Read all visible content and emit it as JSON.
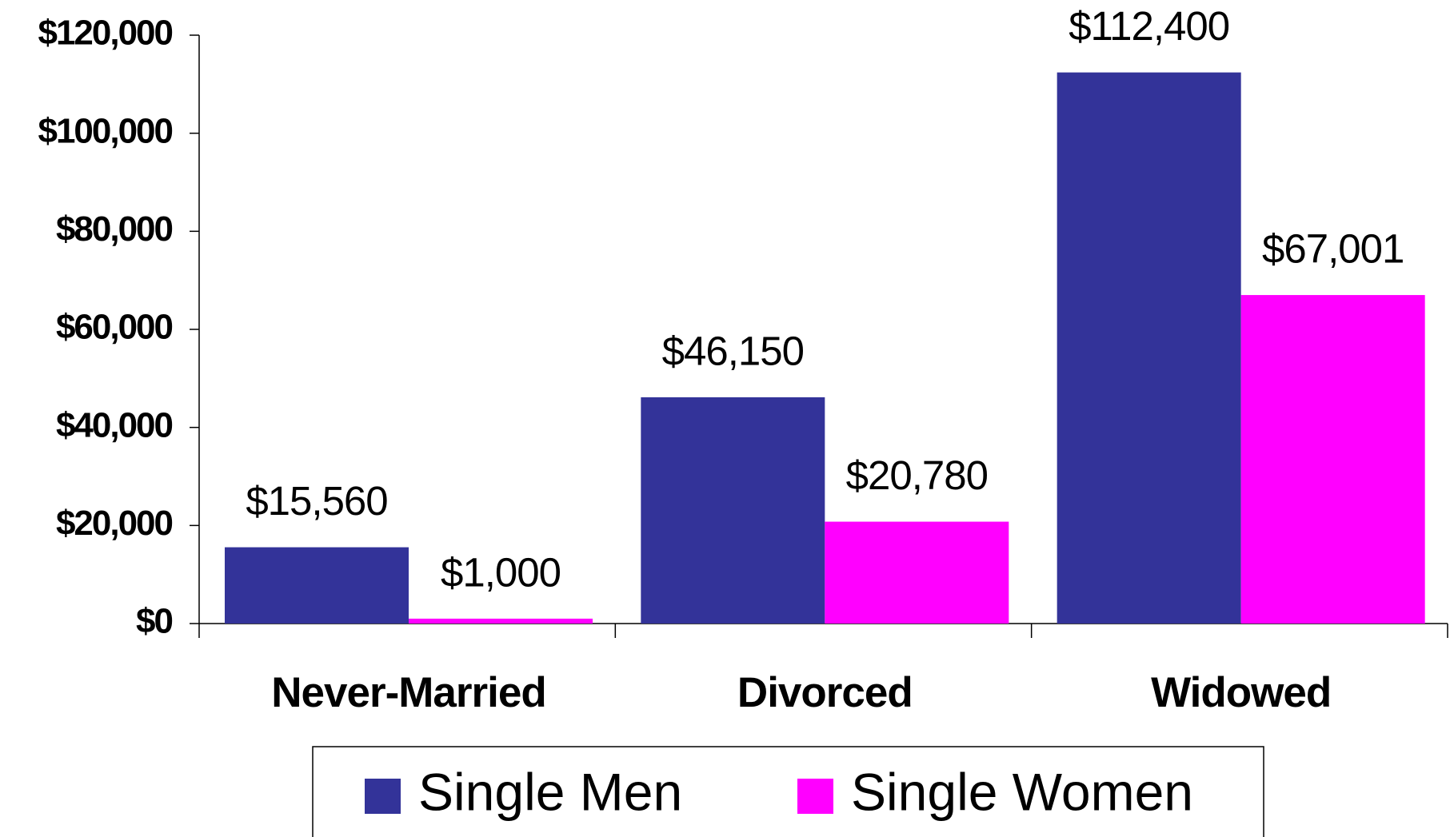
{
  "chart_data": {
    "type": "bar",
    "categories": [
      "Never-Married",
      "Divorced",
      "Widowed"
    ],
    "series": [
      {
        "name": "Single Men",
        "color": "#333399",
        "values": [
          15560,
          46150,
          112400
        ],
        "value_labels": [
          "$15,560",
          "$46,150",
          "$112,400"
        ]
      },
      {
        "name": "Single Women",
        "color": "#ff00ff",
        "values": [
          1000,
          20780,
          67001
        ],
        "value_labels": [
          "$1,000",
          "$20,780",
          "$67,001"
        ]
      }
    ],
    "ylim": [
      0,
      120000
    ],
    "yticks": [
      {
        "value": 0,
        "label": "$0"
      },
      {
        "value": 20000,
        "label": "$20,000"
      },
      {
        "value": 40000,
        "label": "$40,000"
      },
      {
        "value": 60000,
        "label": "$60,000"
      },
      {
        "value": 80000,
        "label": "$80,000"
      },
      {
        "value": 100000,
        "label": "$100,000"
      },
      {
        "value": 120000,
        "label": "$120,000"
      }
    ],
    "grid": false,
    "legend": "bottom"
  }
}
